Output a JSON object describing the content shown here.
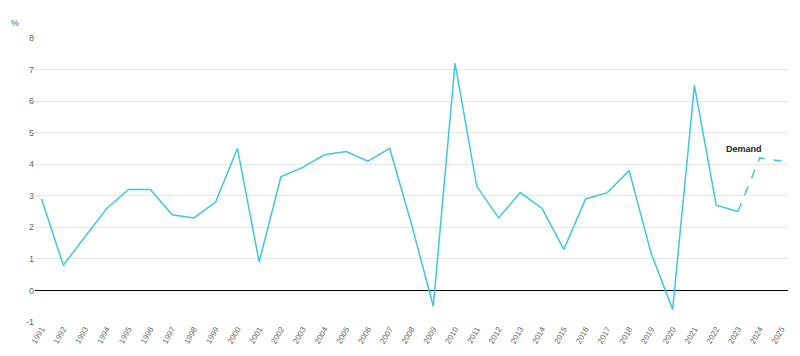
{
  "chart_data": {
    "type": "line",
    "ylabel": "%",
    "categories": [
      "1991",
      "1992",
      "1993",
      "1994",
      "1995",
      "1996",
      "1997",
      "1998",
      "1999",
      "2000",
      "2001",
      "2002",
      "2003",
      "2004",
      "2005",
      "2006",
      "2007",
      "2008",
      "2009",
      "2010",
      "2011",
      "2012",
      "2013",
      "2014",
      "2015",
      "2016",
      "2017",
      "2018",
      "2019",
      "2020",
      "2021",
      "2022",
      "2023",
      "2024",
      "2025"
    ],
    "series": [
      {
        "color": "#3fc7e0",
        "line_style": "solid",
        "values": [
          2.9,
          0.8,
          1.7,
          2.6,
          3.2,
          3.2,
          2.4,
          2.3,
          2.8,
          4.5,
          0.9,
          3.6,
          3.9,
          4.3,
          4.4,
          4.1,
          4.5,
          2.1,
          -0.5,
          7.2,
          3.3,
          2.3,
          3.1,
          2.6,
          1.3,
          2.9,
          3.1,
          3.8,
          1.2,
          -0.6,
          6.5,
          2.7,
          2.5,
          null,
          null
        ]
      },
      {
        "color": "#3fc7e0",
        "line_style": "dashed",
        "values": [
          null,
          null,
          null,
          null,
          null,
          null,
          null,
          null,
          null,
          null,
          null,
          null,
          null,
          null,
          null,
          null,
          null,
          null,
          null,
          null,
          null,
          null,
          null,
          null,
          null,
          null,
          null,
          null,
          null,
          null,
          null,
          null,
          2.5,
          4.2,
          4.1
        ]
      }
    ],
    "annotations": [
      {
        "text": "Demand",
        "x": "2024"
      }
    ],
    "ylim": [
      -1,
      8
    ],
    "yticks": [
      -1,
      0,
      1,
      2,
      3,
      4,
      5,
      6,
      7,
      8
    ],
    "grid": true
  }
}
